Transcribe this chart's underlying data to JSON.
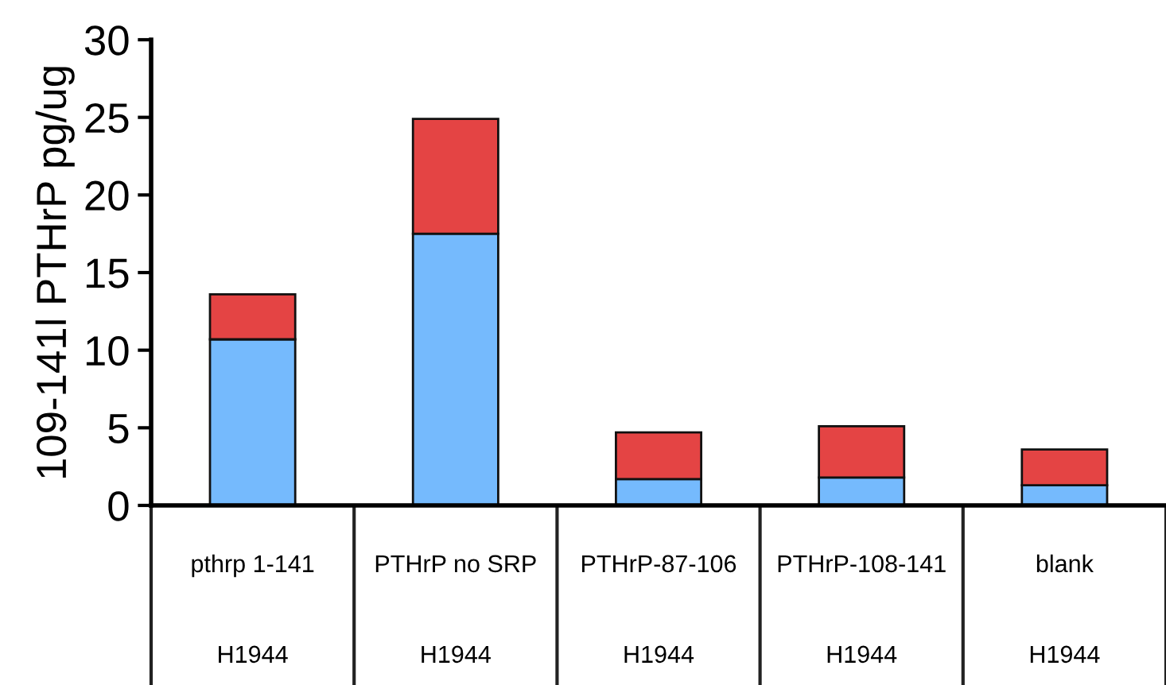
{
  "chart_data": {
    "type": "bar",
    "stacked": true,
    "ylabel": "109-141l PTHrP pg/ug",
    "categories": [
      "pthrp 1-141\nH1944",
      "PTHrP no SRP\nH1944",
      "PTHrP-87-106\nH1944",
      "PTHrP-108-141\nH1944",
      "blank\nH1944"
    ],
    "series": [
      {
        "color": "#75bafd",
        "values": [
          10.7,
          17.5,
          1.7,
          1.8,
          1.3
        ]
      },
      {
        "color": "#e44444",
        "values": [
          2.9,
          7.4,
          3.0,
          3.3,
          2.3
        ]
      }
    ],
    "ylim": [
      0,
      30
    ],
    "yticks": [
      0,
      5,
      10,
      15,
      20,
      25,
      30
    ],
    "grid": false,
    "legend": false
  }
}
